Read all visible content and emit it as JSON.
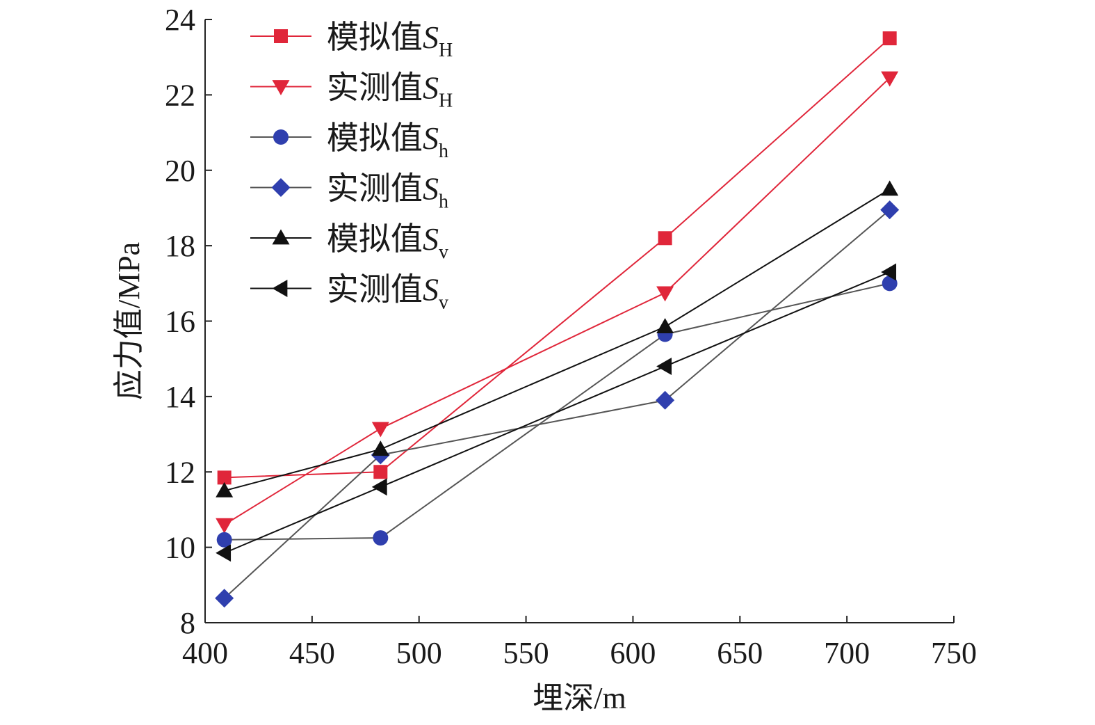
{
  "chart_data": {
    "type": "line",
    "xlabel": "埋深/m",
    "ylabel": "应力值/MPa",
    "xlim": [
      400,
      750
    ],
    "ylim": [
      8,
      24
    ],
    "xticks": [
      400,
      450,
      500,
      550,
      600,
      650,
      700,
      750
    ],
    "yticks": [
      8,
      10,
      12,
      14,
      16,
      18,
      20,
      22,
      24
    ],
    "grid": false,
    "legend_position": "top-left",
    "x": [
      409,
      482,
      615,
      720
    ],
    "series": [
      {
        "name": "模拟值",
        "symbol": "S",
        "sub": "H",
        "marker": "square",
        "color": "#e0263a",
        "line_color": "#e0263a",
        "values": [
          11.85,
          12.0,
          18.2,
          23.5
        ]
      },
      {
        "name": "实测值",
        "symbol": "S",
        "sub": "H",
        "marker": "triangle-down",
        "color": "#e0263a",
        "line_color": "#e0263a",
        "values": [
          10.6,
          13.15,
          16.75,
          22.45
        ]
      },
      {
        "name": "模拟值",
        "symbol": "S",
        "sub": "h",
        "marker": "circle",
        "color": "#2f3fae",
        "line_color": "#555555",
        "values": [
          10.2,
          10.25,
          15.65,
          17.0
        ]
      },
      {
        "name": "实测值",
        "symbol": "S",
        "sub": "h",
        "marker": "diamond",
        "color": "#2f3fae",
        "line_color": "#555555",
        "values": [
          8.65,
          12.45,
          13.9,
          18.95
        ]
      },
      {
        "name": "模拟值",
        "symbol": "S",
        "sub": "v",
        "marker": "triangle-up",
        "color": "#111111",
        "line_color": "#111111",
        "values": [
          11.5,
          12.6,
          15.85,
          19.5
        ]
      },
      {
        "name": "实测值",
        "symbol": "S",
        "sub": "v",
        "marker": "triangle-left",
        "color": "#111111",
        "line_color": "#111111",
        "values": [
          9.85,
          11.6,
          14.8,
          17.3
        ]
      }
    ]
  }
}
